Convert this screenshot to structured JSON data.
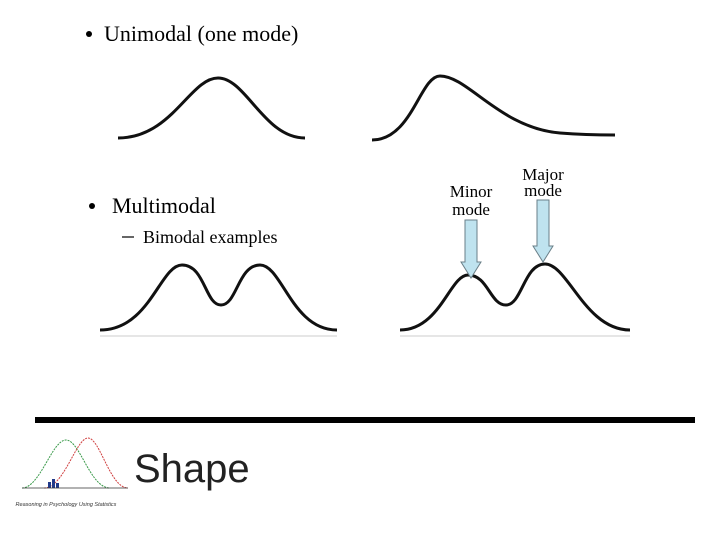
{
  "bullets": [
    {
      "text": "Unimodal (one mode)"
    },
    {
      "text": "Multimodal",
      "sub": "Bimodal examples"
    }
  ],
  "annotations": {
    "minor": [
      "Minor",
      "mode"
    ],
    "major": [
      "Major",
      "mode"
    ]
  },
  "title": "Shape",
  "logo": {
    "caption": "Reasoning in Psychology Using Statistics"
  }
}
